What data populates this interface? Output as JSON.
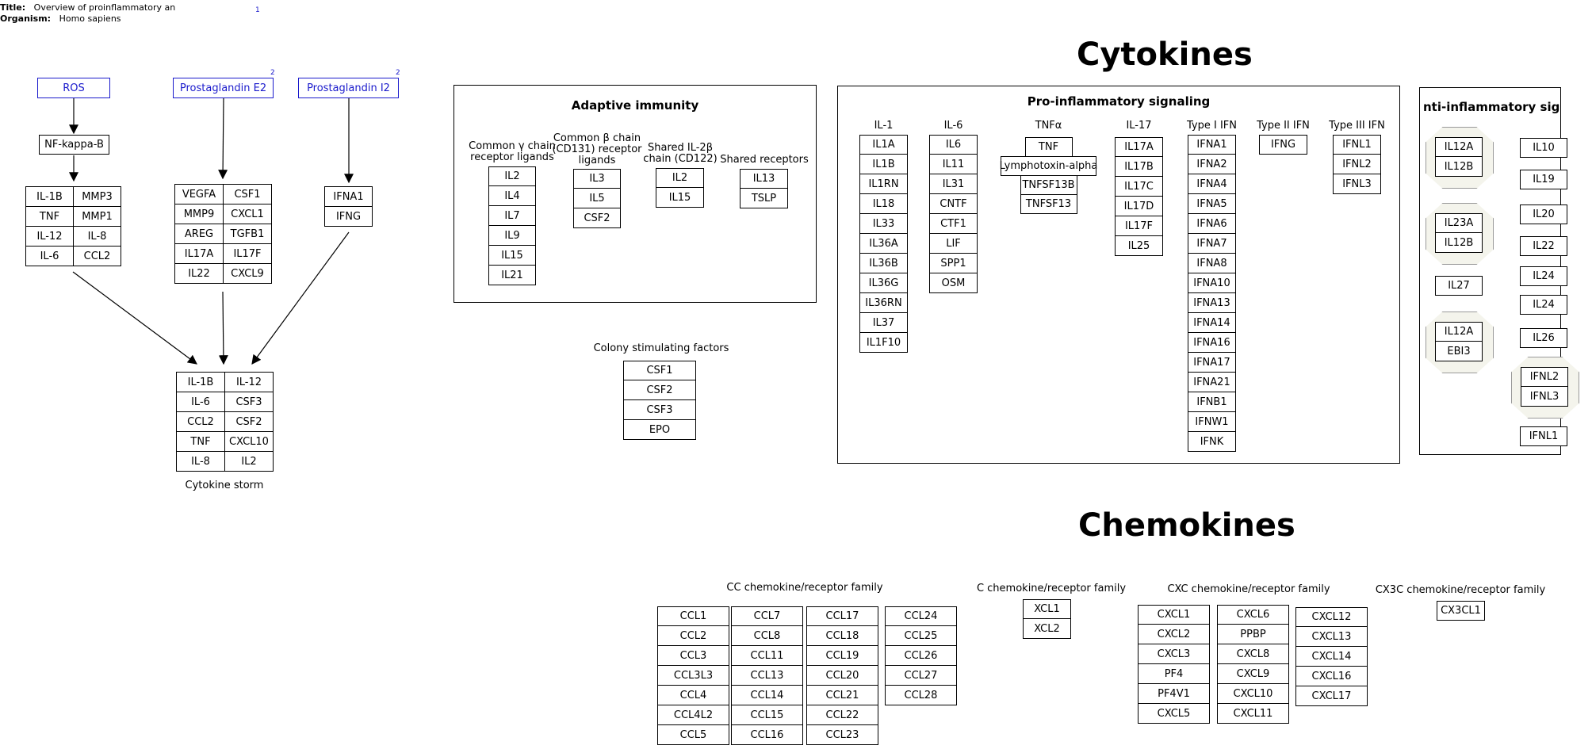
{
  "meta": {
    "title_label": "Title:",
    "title_value": "Overview of proinflammatory an",
    "organism_label": "Organism:",
    "organism_value": "Homo sapiens",
    "ref_marker": "1"
  },
  "pathway": {
    "ros": "ROS",
    "pge2": "Prostaglandin E2",
    "pgi2": "Prostaglandin I2",
    "sup": "2",
    "nfkb": "NF-kappa-B",
    "grid_ros": [
      "IL-1B",
      "MMP3",
      "TNF",
      "MMP1",
      "IL-12",
      "IL-8",
      "IL-6",
      "CCL2"
    ],
    "grid_pge2": [
      "VEGFA",
      "CSF1",
      "MMP9",
      "CXCL1",
      "AREG",
      "TGFB1",
      "IL17A",
      "IL17F",
      "IL22",
      "CXCL9"
    ],
    "grid_pgi2": [
      "IFNA1",
      "IFNG"
    ],
    "grid_storm": [
      "IL-1B",
      "IL-12",
      "IL-6",
      "CSF3",
      "CCL2",
      "CSF2",
      "TNF",
      "CXCL10",
      "IL-8",
      "IL2"
    ],
    "storm_label": "Cytokine storm"
  },
  "headings": {
    "cytokines": "Cytokines",
    "chemokines": "Chemokines"
  },
  "adaptive": {
    "title": "Adaptive immunity",
    "groups": [
      {
        "label": "Common γ chain\nreceptor ligands",
        "items": [
          "IL2",
          "IL4",
          "IL7",
          "IL9",
          "IL15",
          "IL21"
        ]
      },
      {
        "label": "Common β chain\n(CD131) receptor\nligands",
        "items": [
          "IL3",
          "IL5",
          "CSF2"
        ]
      },
      {
        "label": "Shared IL-2β\nchain (CD122)",
        "items": [
          "IL2",
          "IL15"
        ]
      },
      {
        "label": "Shared receptors",
        "items": [
          "IL13",
          "TSLP"
        ]
      }
    ]
  },
  "csf": {
    "label": "Colony stimulating factors",
    "items": [
      "CSF1",
      "CSF2",
      "CSF3",
      "EPO"
    ]
  },
  "pro": {
    "title": "Pro-inflammatory signaling",
    "groups": [
      {
        "label": "IL-1",
        "items": [
          "IL1A",
          "IL1B",
          "IL1RN",
          "IL18",
          "IL33",
          "IL36A",
          "IL36B",
          "IL36G",
          "IL36RN",
          "IL37",
          "IL1F10"
        ]
      },
      {
        "label": "IL-6",
        "items": [
          "IL6",
          "IL11",
          "IL31",
          "CNTF",
          "CTF1",
          "LIF",
          "SPP1",
          "OSM"
        ]
      },
      {
        "label": "TNFα",
        "items": [
          "TNF",
          "Lymphotoxin-alpha",
          "TNFSF13B",
          "TNFSF13"
        ]
      },
      {
        "label": "IL-17",
        "items": [
          "IL17A",
          "IL17B",
          "IL17C",
          "IL17D",
          "IL17F",
          "IL25"
        ]
      },
      {
        "label": "Type I IFN",
        "items": [
          "IFNA1",
          "IFNA2",
          "IFNA4",
          "IFNA5",
          "IFNA6",
          "IFNA7",
          "IFNA8",
          "IFNA10",
          "IFNA13",
          "IFNA14",
          "IFNA16",
          "IFNA17",
          "IFNA21",
          "IFNB1",
          "IFNW1",
          "IFNK"
        ]
      },
      {
        "label": "Type II IFN",
        "items": [
          "IFNG"
        ]
      },
      {
        "label": "Type III IFN",
        "items": [
          "IFNL1",
          "IFNL2",
          "IFNL3"
        ]
      }
    ]
  },
  "anti": {
    "title": "nti-inflammatory signalin",
    "complexes": [
      [
        "IL12A",
        "IL12B"
      ],
      [
        "IL23A",
        "IL12B"
      ],
      [
        "IL12A",
        "EBI3"
      ],
      [
        "IFNL2",
        "IFNL3"
      ]
    ],
    "singles_left": [
      "IL27"
    ],
    "singles_right": [
      "IL10",
      "IL19",
      "IL20",
      "IL22",
      "IL24",
      "IL24",
      "IL26",
      "IFNL1"
    ]
  },
  "chemo": {
    "cc": {
      "label": "CC chemokine/receptor family",
      "cols": [
        [
          "CCL1",
          "CCL2",
          "CCL3",
          "CCL3L3",
          "CCL4",
          "CCL4L2",
          "CCL5"
        ],
        [
          "CCL7",
          "CCL8",
          "CCL11",
          "CCL13",
          "CCL14",
          "CCL15",
          "CCL16"
        ],
        [
          "CCL17",
          "CCL18",
          "CCL19",
          "CCL20",
          "CCL21",
          "CCL22",
          "CCL23"
        ],
        [
          "CCL24",
          "CCL25",
          "CCL26",
          "CCL27",
          "CCL28"
        ]
      ]
    },
    "c": {
      "label": "C chemokine/receptor family",
      "cols": [
        [
          "XCL1",
          "XCL2"
        ]
      ]
    },
    "cxc": {
      "label": "CXC chemokine/receptor family",
      "cols": [
        [
          "CXCL1",
          "CXCL2",
          "CXCL3",
          "PF4",
          "PF4V1",
          "CXCL5"
        ],
        [
          "CXCL6",
          "PPBP",
          "CXCL8",
          "CXCL9",
          "CXCL10",
          "CXCL11"
        ],
        [
          "CXCL12",
          "CXCL13",
          "CXCL14",
          "CXCL16",
          "CXCL17"
        ]
      ]
    },
    "cx3c": {
      "label": "CX3C chemokine/receptor family",
      "cols": [
        [
          "CX3CL1"
        ]
      ]
    }
  }
}
